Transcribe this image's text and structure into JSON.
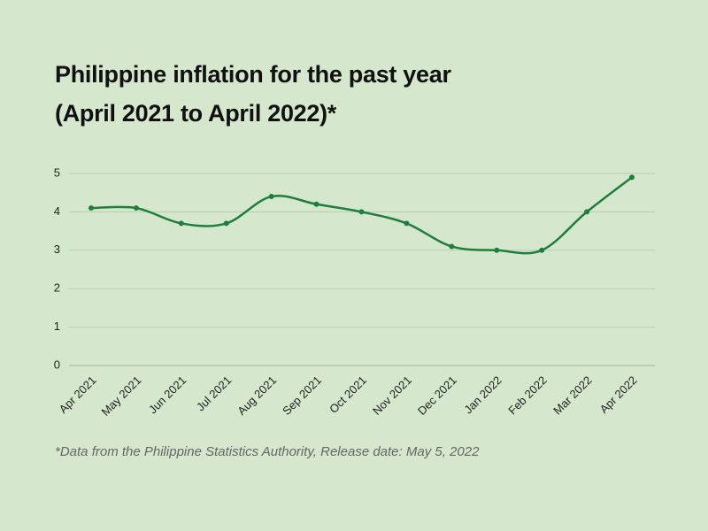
{
  "chart_data": {
    "type": "line",
    "title": "Philippine inflation for the past year (April 2021 to April 2022)*",
    "footnote": "*Data from the Philippine Statistics Authority, Release date: May 5, 2022",
    "categories": [
      "Apr 2021",
      "May 2021",
      "Jun 2021",
      "Jul 2021",
      "Aug 2021",
      "Sep 2021",
      "Oct 2021",
      "Nov 2021",
      "Dec 2021",
      "Jan 2022",
      "Feb 2022",
      "Mar 2022",
      "Apr 2022"
    ],
    "series": [
      {
        "color": "#1f7e3c",
        "values": [
          4.1,
          4.1,
          3.7,
          3.7,
          4.4,
          4.2,
          4.0,
          3.7,
          3.1,
          3.0,
          3.0,
          4.0,
          4.9
        ]
      }
    ],
    "ylim": [
      0,
      5
    ],
    "yticks": [
      0,
      1,
      2,
      3,
      4,
      5
    ],
    "grid": true,
    "smooth": true
  }
}
